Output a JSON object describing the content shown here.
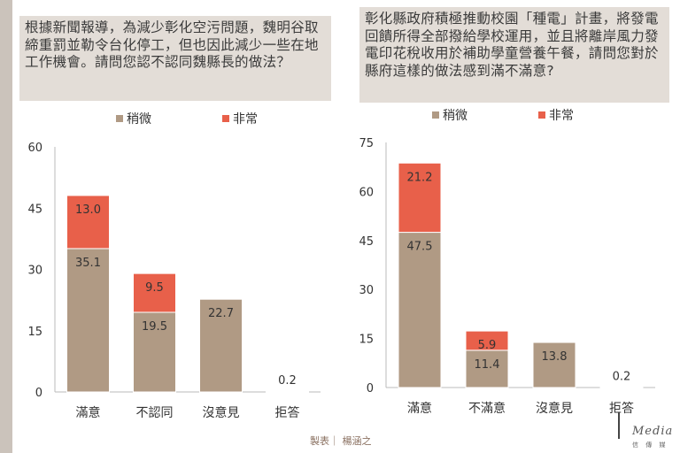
{
  "chart_data": [
    {
      "type": "bar",
      "stacked": true,
      "title": "根據新聞報導，為減少彰化空污問題，魏明谷取締重罰並勒令台化停工，但也因此減少一些在地工作機會。請問您認不認同魏縣長的做法？",
      "categories": [
        "滿意",
        "不認同",
        "沒意見",
        "拒答"
      ],
      "series": [
        {
          "name": "稍微",
          "color": "#b09a84",
          "values": [
            35.1,
            19.5,
            22.7,
            0.2
          ]
        },
        {
          "name": "非常",
          "color": "#e8604a",
          "values": [
            13.0,
            9.5,
            null,
            null
          ]
        }
      ],
      "yticks": [
        "0",
        "15",
        "30",
        "45",
        "60"
      ],
      "ylim": [
        0,
        60
      ],
      "legend_position": "top",
      "grid": false
    },
    {
      "type": "bar",
      "stacked": true,
      "title": "彰化縣政府積極推動校園「種電」計畫，將發電回饋所得全部撥給學校運用，並且將離岸風力發電印花稅收用於補助學童營養午餐，請問您對於縣府這樣的做法感到滿不滿意?",
      "categories": [
        "滿意",
        "不滿意",
        "沒意見",
        "拒答"
      ],
      "series": [
        {
          "name": "稍微",
          "color": "#b09a84",
          "values": [
            47.5,
            11.4,
            13.8,
            0.2
          ]
        },
        {
          "name": "非常",
          "color": "#e8604a",
          "values": [
            21.2,
            5.9,
            null,
            null
          ]
        }
      ],
      "yticks": [
        "0",
        "15",
        "30",
        "45",
        "60",
        "75"
      ],
      "ylim": [
        0,
        75
      ],
      "legend_position": "top",
      "grid": false
    }
  ],
  "footer": {
    "credit": "製表｜ 楊涵之",
    "logo_text": "Media",
    "logo_sub": "信 傳 媒"
  }
}
